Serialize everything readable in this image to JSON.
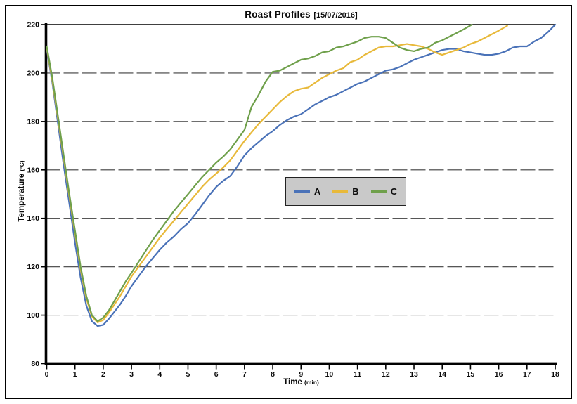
{
  "title": {
    "main": "Roast Profiles",
    "date": "[15/07/2016]"
  },
  "axes": {
    "x": {
      "label": "Time",
      "unit": "(min)",
      "min": 0,
      "max": 18,
      "ticks": [
        0,
        1,
        2,
        3,
        4,
        5,
        6,
        7,
        8,
        9,
        10,
        11,
        12,
        13,
        14,
        15,
        16,
        17,
        18
      ]
    },
    "y": {
      "label": "Temperature",
      "unit": "(°C)",
      "min": 80,
      "max": 220,
      "ticks": [
        80,
        100,
        120,
        140,
        160,
        180,
        200,
        220
      ]
    }
  },
  "legend": {
    "items": [
      "A",
      "B",
      "C"
    ]
  },
  "colors": {
    "series_a": "#4a72b8",
    "series_b": "#e8b93a",
    "series_c": "#6fa04b",
    "grid": "#3f3f3f",
    "axis": "#000000",
    "legend_bg": "#c9c9c9",
    "text": "#0a0a0a"
  },
  "chart_data": {
    "type": "line",
    "title": "Roast Profiles [15/07/2016]",
    "xlabel": "Time (min)",
    "ylabel": "Temperature (°C)",
    "xlim": [
      0,
      18
    ],
    "ylim": [
      80,
      220
    ],
    "grid": "horizontal, dashed, every 20 °C",
    "legend_position": "center-right boxed",
    "series": [
      {
        "name": "A",
        "color": "#4a72b8",
        "points": [
          [
            0,
            210
          ],
          [
            0.2,
            196
          ],
          [
            0.4,
            179
          ],
          [
            0.6,
            162
          ],
          [
            0.8,
            146
          ],
          [
            1,
            130
          ],
          [
            1.2,
            115.5
          ],
          [
            1.4,
            104
          ],
          [
            1.6,
            97.5
          ],
          [
            1.8,
            95.5
          ],
          [
            2,
            96
          ],
          [
            2.2,
            98.5
          ],
          [
            2.4,
            101.5
          ],
          [
            2.6,
            104.5
          ],
          [
            2.8,
            108
          ],
          [
            3,
            112
          ],
          [
            3.25,
            116
          ],
          [
            3.5,
            120
          ],
          [
            3.75,
            123.5
          ],
          [
            4,
            127
          ],
          [
            4.25,
            130
          ],
          [
            4.5,
            132.5
          ],
          [
            4.75,
            135.5
          ],
          [
            5,
            138
          ],
          [
            5.25,
            141.5
          ],
          [
            5.5,
            145.5
          ],
          [
            5.75,
            149.5
          ],
          [
            6,
            153
          ],
          [
            6.25,
            155.5
          ],
          [
            6.5,
            157.5
          ],
          [
            6.75,
            161.5
          ],
          [
            7,
            166
          ],
          [
            7.25,
            169
          ],
          [
            7.5,
            171.5
          ],
          [
            7.75,
            174
          ],
          [
            8,
            176
          ],
          [
            8.25,
            178.5
          ],
          [
            8.5,
            180.5
          ],
          [
            8.75,
            182
          ],
          [
            9,
            183
          ],
          [
            9.25,
            185
          ],
          [
            9.5,
            187
          ],
          [
            9.75,
            188.5
          ],
          [
            10,
            190
          ],
          [
            10.25,
            191
          ],
          [
            10.5,
            192.5
          ],
          [
            10.75,
            194
          ],
          [
            11,
            195.5
          ],
          [
            11.25,
            196.5
          ],
          [
            11.5,
            198
          ],
          [
            11.75,
            199.5
          ],
          [
            12,
            201
          ],
          [
            12.25,
            201.5
          ],
          [
            12.5,
            202.5
          ],
          [
            12.75,
            204
          ],
          [
            13,
            205.5
          ],
          [
            13.25,
            206.5
          ],
          [
            13.5,
            207.5
          ],
          [
            13.75,
            208.5
          ],
          [
            14,
            209.5
          ],
          [
            14.25,
            210
          ],
          [
            14.5,
            210
          ],
          [
            14.75,
            209
          ],
          [
            15,
            208.5
          ],
          [
            15.25,
            208
          ],
          [
            15.5,
            207.5
          ],
          [
            15.75,
            207.5
          ],
          [
            16,
            208
          ],
          [
            16.25,
            209
          ],
          [
            16.5,
            210.5
          ],
          [
            16.75,
            211
          ],
          [
            17,
            211
          ],
          [
            17.25,
            213
          ],
          [
            17.5,
            214.5
          ],
          [
            17.75,
            217
          ],
          [
            18,
            220
          ]
        ]
      },
      {
        "name": "B",
        "color": "#e8b93a",
        "points": [
          [
            0,
            210.5
          ],
          [
            0.2,
            197
          ],
          [
            0.4,
            181
          ],
          [
            0.6,
            165
          ],
          [
            0.8,
            149
          ],
          [
            1,
            134
          ],
          [
            1.2,
            119
          ],
          [
            1.4,
            107
          ],
          [
            1.6,
            99.5
          ],
          [
            1.8,
            97
          ],
          [
            2,
            98
          ],
          [
            2.2,
            101
          ],
          [
            2.4,
            104.5
          ],
          [
            2.6,
            108
          ],
          [
            2.8,
            112
          ],
          [
            3,
            116
          ],
          [
            3.25,
            120
          ],
          [
            3.5,
            124
          ],
          [
            3.75,
            128
          ],
          [
            4,
            132
          ],
          [
            4.25,
            135.5
          ],
          [
            4.5,
            139
          ],
          [
            4.75,
            142.5
          ],
          [
            5,
            146
          ],
          [
            5.25,
            149.5
          ],
          [
            5.5,
            153
          ],
          [
            5.75,
            156
          ],
          [
            6,
            158.5
          ],
          [
            6.25,
            161
          ],
          [
            6.5,
            164
          ],
          [
            6.75,
            168
          ],
          [
            7,
            172
          ],
          [
            7.25,
            175.5
          ],
          [
            7.5,
            179
          ],
          [
            7.75,
            182
          ],
          [
            8,
            185
          ],
          [
            8.25,
            188
          ],
          [
            8.5,
            190.5
          ],
          [
            8.75,
            192.5
          ],
          [
            9,
            193.5
          ],
          [
            9.25,
            194
          ],
          [
            9.5,
            196
          ],
          [
            9.75,
            198
          ],
          [
            10,
            199.5
          ],
          [
            10.25,
            201
          ],
          [
            10.5,
            202
          ],
          [
            10.75,
            204.5
          ],
          [
            11,
            205.5
          ],
          [
            11.25,
            207.5
          ],
          [
            11.5,
            209
          ],
          [
            11.75,
            210.5
          ],
          [
            12,
            211
          ],
          [
            12.25,
            211
          ],
          [
            12.5,
            211.5
          ],
          [
            12.75,
            212
          ],
          [
            13,
            211.5
          ],
          [
            13.25,
            211
          ],
          [
            13.5,
            210
          ],
          [
            13.75,
            208.5
          ],
          [
            14,
            207.5
          ],
          [
            14.25,
            208.5
          ],
          [
            14.5,
            209.5
          ],
          [
            14.75,
            210.5
          ],
          [
            15,
            212
          ],
          [
            15.25,
            213
          ],
          [
            15.5,
            214.5
          ],
          [
            15.75,
            216
          ],
          [
            16,
            217.5
          ],
          [
            16.3,
            219.5
          ]
        ]
      },
      {
        "name": "C",
        "color": "#6fa04b",
        "points": [
          [
            0,
            211
          ],
          [
            0.2,
            198
          ],
          [
            0.4,
            182
          ],
          [
            0.6,
            166
          ],
          [
            0.8,
            150
          ],
          [
            1,
            135
          ],
          [
            1.2,
            120
          ],
          [
            1.4,
            108
          ],
          [
            1.6,
            100
          ],
          [
            1.8,
            97.5
          ],
          [
            2,
            99
          ],
          [
            2.2,
            102
          ],
          [
            2.4,
            106
          ],
          [
            2.6,
            110
          ],
          [
            2.8,
            114
          ],
          [
            3,
            117.5
          ],
          [
            3.25,
            122
          ],
          [
            3.5,
            126.5
          ],
          [
            3.75,
            131
          ],
          [
            4,
            135
          ],
          [
            4.25,
            139
          ],
          [
            4.5,
            143
          ],
          [
            4.75,
            146.5
          ],
          [
            5,
            150
          ],
          [
            5.25,
            153.5
          ],
          [
            5.5,
            157
          ],
          [
            5.75,
            160
          ],
          [
            6,
            163
          ],
          [
            6.25,
            165.5
          ],
          [
            6.5,
            168.5
          ],
          [
            6.75,
            172.5
          ],
          [
            7,
            176.5
          ],
          [
            7.25,
            186
          ],
          [
            7.5,
            191
          ],
          [
            7.75,
            196.5
          ],
          [
            8,
            200.5
          ],
          [
            8.25,
            201
          ],
          [
            8.5,
            202.5
          ],
          [
            8.75,
            204
          ],
          [
            9,
            205.5
          ],
          [
            9.25,
            206
          ],
          [
            9.5,
            207
          ],
          [
            9.75,
            208.5
          ],
          [
            10,
            209
          ],
          [
            10.25,
            210.5
          ],
          [
            10.5,
            211
          ],
          [
            10.75,
            212
          ],
          [
            11,
            213
          ],
          [
            11.25,
            214.5
          ],
          [
            11.5,
            215
          ],
          [
            11.75,
            215
          ],
          [
            12,
            214.5
          ],
          [
            12.25,
            212.5
          ],
          [
            12.5,
            210.5
          ],
          [
            12.75,
            209.5
          ],
          [
            13,
            209
          ],
          [
            13.25,
            210
          ],
          [
            13.5,
            210.5
          ],
          [
            13.75,
            212.5
          ],
          [
            14,
            213.5
          ],
          [
            14.25,
            215
          ],
          [
            14.5,
            216.5
          ],
          [
            14.75,
            218
          ],
          [
            15.05,
            220
          ]
        ]
      }
    ]
  }
}
